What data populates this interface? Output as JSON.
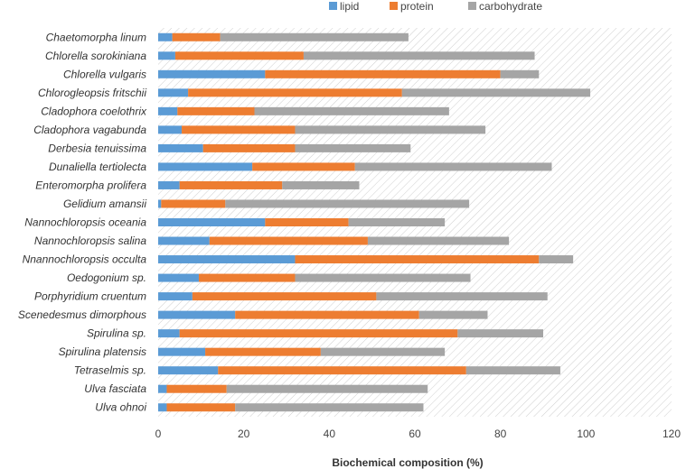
{
  "chart_data": {
    "type": "bar",
    "orientation": "horizontal",
    "stacked": true,
    "xlabel": "Biochemical composition (%)",
    "xlim": [
      0,
      120
    ],
    "xticks": [
      0,
      20,
      40,
      60,
      80,
      100,
      120
    ],
    "grid": false,
    "legend_position": "top",
    "categories": [
      "Chaetomorpha linum",
      "Chlorella sorokiniana",
      "Chlorella vulgaris",
      "Chlorogleopsis fritschii",
      "Cladophora coelothrix",
      "Cladophora vagabunda",
      "Derbesia tenuissima",
      "Dunaliella tertiolecta",
      "Enteromorpha prolifera",
      "Gelidium amansii",
      "Nannochloropsis oceania",
      "Nannochloropsis salina",
      "Nnannochloropsis occulta",
      "Oedogonium sp.",
      "Porphyridium cruentum",
      "Scenedesmus dimorphous",
      "Spirulina sp.",
      "Spirulina platensis",
      "Tetraselmis sp.",
      "Ulva fasciata",
      "Ulva ohnoi"
    ],
    "series": [
      {
        "name": "lipid",
        "color": "#5b9bd5",
        "values": [
          3.3,
          4.0,
          25.0,
          7.0,
          4.5,
          5.5,
          10.5,
          22.0,
          5.0,
          0.7,
          25.0,
          12.0,
          32.0,
          9.5,
          8.0,
          18.0,
          5.0,
          11.0,
          14.0,
          2.0,
          2.0
        ]
      },
      {
        "name": "protein",
        "color": "#ed7d31",
        "values": [
          11.2,
          30.0,
          55.0,
          50.0,
          18.0,
          26.5,
          21.5,
          24.0,
          24.0,
          15.0,
          19.5,
          37.0,
          57.0,
          22.5,
          43.0,
          43.0,
          65.0,
          27.0,
          58.0,
          14.0,
          16.0
        ]
      },
      {
        "name": "carbohydrate",
        "color": "#a5a5a5",
        "values": [
          44.0,
          54.0,
          9.0,
          44.0,
          45.5,
          44.5,
          27.0,
          46.0,
          18.0,
          57.0,
          22.5,
          33.0,
          8.0,
          41.0,
          40.0,
          16.0,
          20.0,
          29.0,
          22.0,
          47.0,
          44.0
        ]
      }
    ]
  }
}
